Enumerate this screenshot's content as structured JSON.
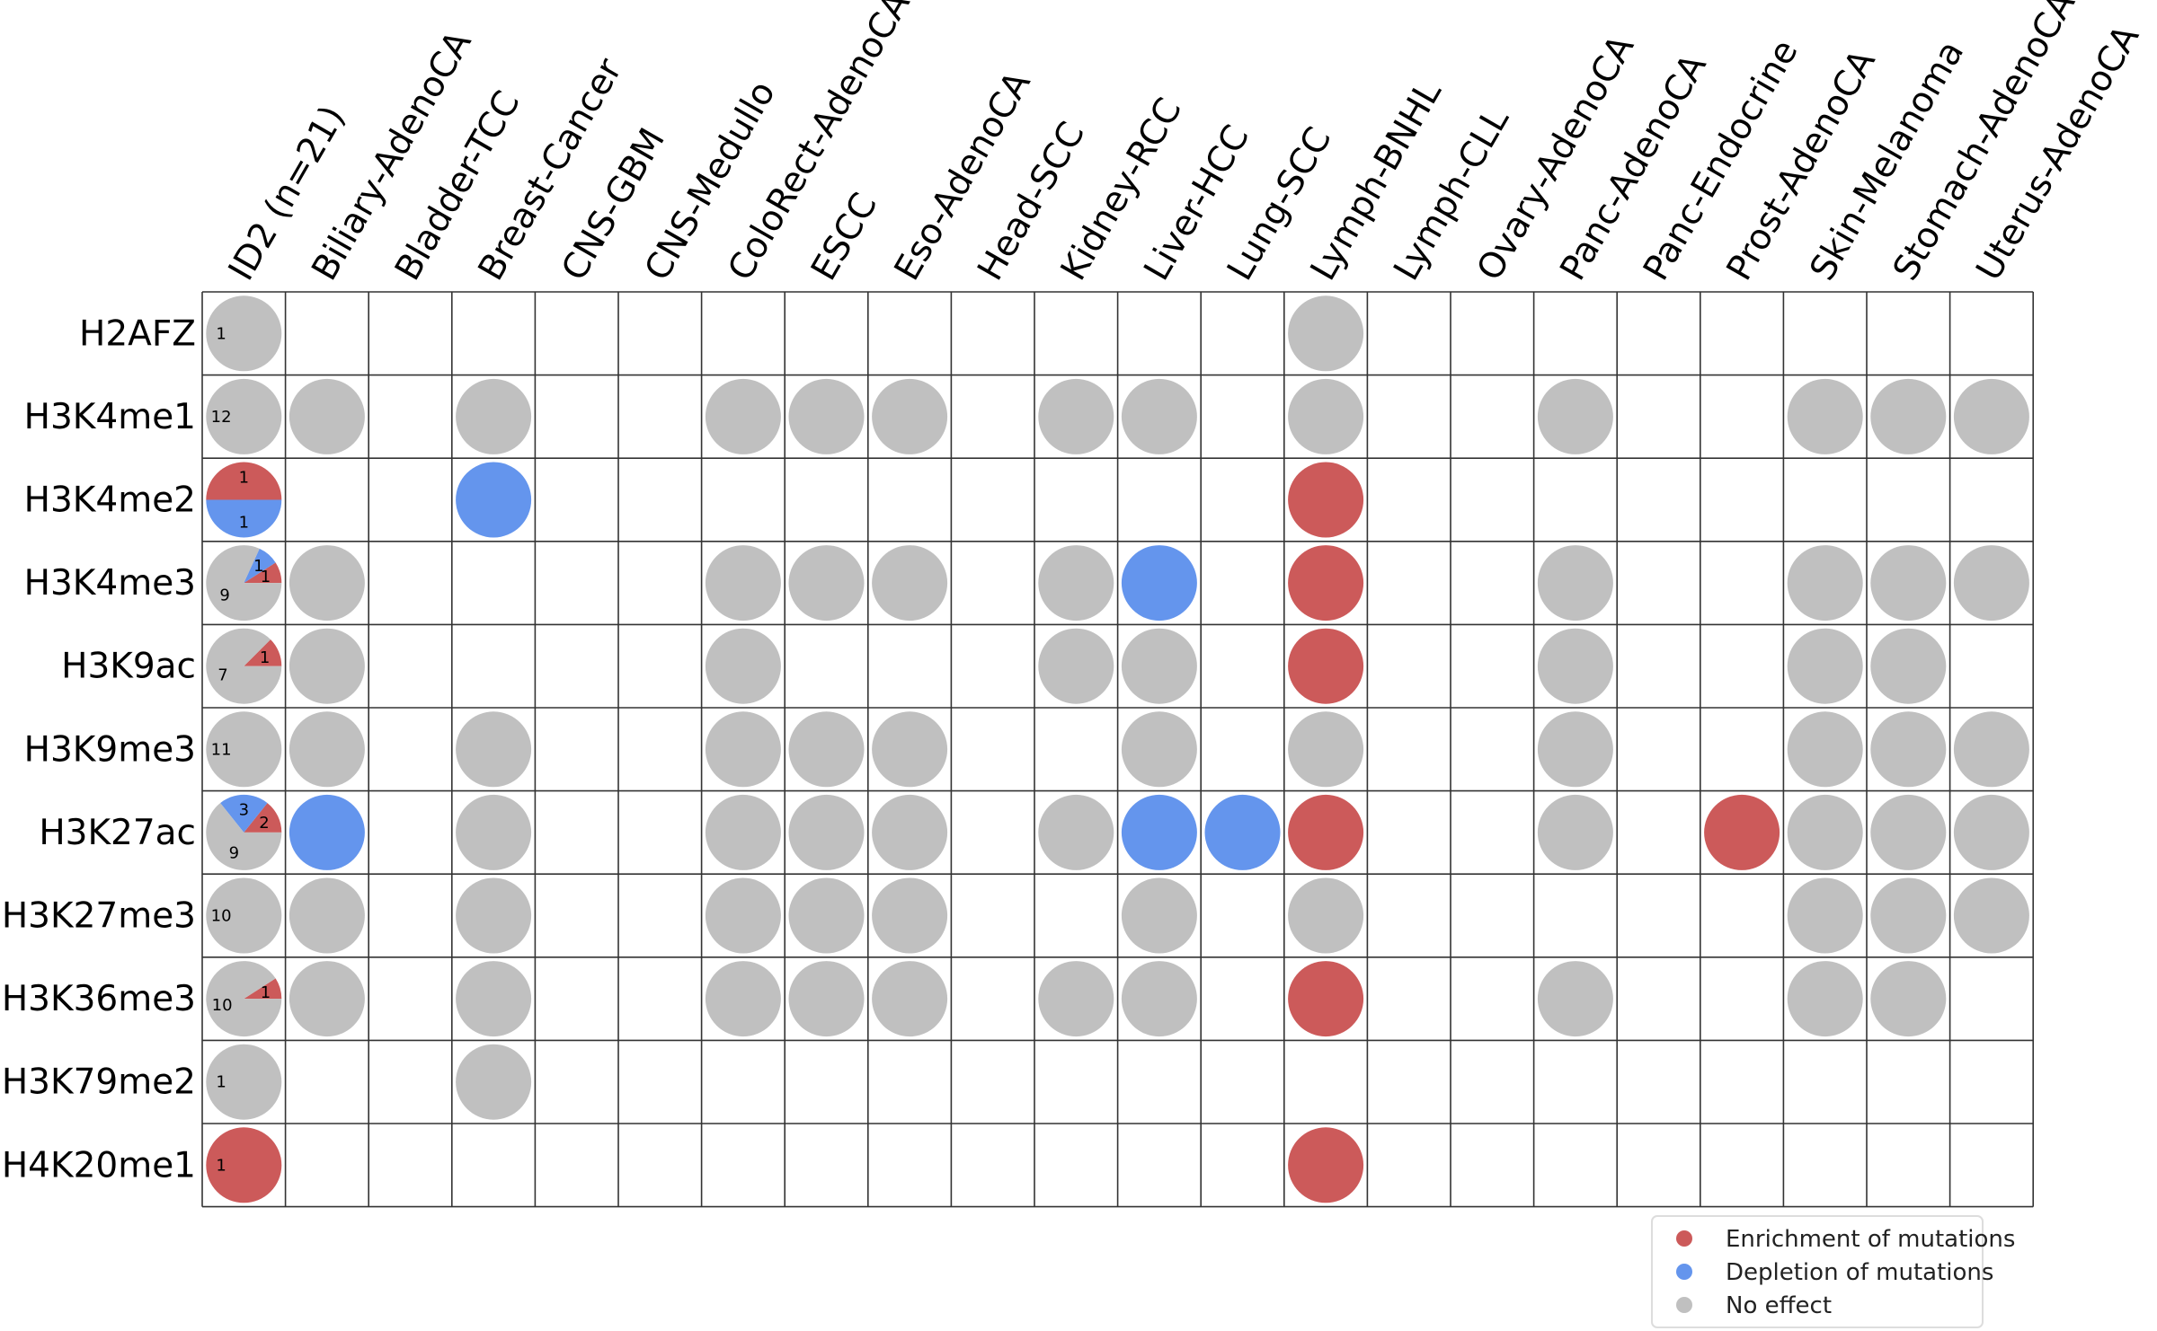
{
  "chart_data": {
    "type": "dot-matrix",
    "rows": [
      "H2AFZ",
      "H3K4me1",
      "H3K4me2",
      "H3K4me3",
      "H3K9ac",
      "H3K9me3",
      "H3K27ac",
      "H3K27me3",
      "H3K36me3",
      "H3K79me2",
      "H4K20me1"
    ],
    "columns": [
      "ID2 (n=21)",
      "Biliary-AdenoCA",
      "Bladder-TCC",
      "Breast-Cancer",
      "CNS-GBM",
      "CNS-Medullo",
      "ColoRect-AdenoCA",
      "ESCC",
      "Eso-AdenoCA",
      "Head-SCC",
      "Kidney-RCC",
      "Liver-HCC",
      "Lung-SCC",
      "Lymph-BNHL",
      "Lymph-CLL",
      "Ovary-AdenoCA",
      "Panc-AdenoCA",
      "Panc-Endocrine",
      "Prost-AdenoCA",
      "Skin-Melanoma",
      "Stomach-AdenoCA",
      "Uterus-AdenoCA"
    ],
    "summary_pies": [
      {
        "row": "H2AFZ",
        "enrichment": 0,
        "depletion": 0,
        "no_effect": 1
      },
      {
        "row": "H3K4me1",
        "enrichment": 0,
        "depletion": 0,
        "no_effect": 12
      },
      {
        "row": "H3K4me2",
        "enrichment": 1,
        "depletion": 1,
        "no_effect": 0
      },
      {
        "row": "H3K4me3",
        "enrichment": 1,
        "depletion": 1,
        "no_effect": 9
      },
      {
        "row": "H3K9ac",
        "enrichment": 1,
        "depletion": 0,
        "no_effect": 7
      },
      {
        "row": "H3K9me3",
        "enrichment": 0,
        "depletion": 0,
        "no_effect": 11
      },
      {
        "row": "H3K27ac",
        "enrichment": 2,
        "depletion": 3,
        "no_effect": 9
      },
      {
        "row": "H3K27me3",
        "enrichment": 0,
        "depletion": 0,
        "no_effect": 10
      },
      {
        "row": "H3K36me3",
        "enrichment": 1,
        "depletion": 0,
        "no_effect": 10
      },
      {
        "row": "H3K79me2",
        "enrichment": 0,
        "depletion": 0,
        "no_effect": 1
      },
      {
        "row": "H4K20me1",
        "enrichment": 1,
        "depletion": 0,
        "no_effect": 0
      }
    ],
    "cells": [
      {
        "row": "H2AFZ",
        "column": "Lymph-BNHL",
        "effect": "none"
      },
      {
        "row": "H3K4me1",
        "column": "Biliary-AdenoCA",
        "effect": "none"
      },
      {
        "row": "H3K4me1",
        "column": "Breast-Cancer",
        "effect": "none"
      },
      {
        "row": "H3K4me1",
        "column": "ColoRect-AdenoCA",
        "effect": "none"
      },
      {
        "row": "H3K4me1",
        "column": "ESCC",
        "effect": "none"
      },
      {
        "row": "H3K4me1",
        "column": "Eso-AdenoCA",
        "effect": "none"
      },
      {
        "row": "H3K4me1",
        "column": "Kidney-RCC",
        "effect": "none"
      },
      {
        "row": "H3K4me1",
        "column": "Liver-HCC",
        "effect": "none"
      },
      {
        "row": "H3K4me1",
        "column": "Lymph-BNHL",
        "effect": "none"
      },
      {
        "row": "H3K4me1",
        "column": "Panc-AdenoCA",
        "effect": "none"
      },
      {
        "row": "H3K4me1",
        "column": "Skin-Melanoma",
        "effect": "none"
      },
      {
        "row": "H3K4me1",
        "column": "Stomach-AdenoCA",
        "effect": "none"
      },
      {
        "row": "H3K4me1",
        "column": "Uterus-AdenoCA",
        "effect": "none"
      },
      {
        "row": "H3K4me2",
        "column": "Breast-Cancer",
        "effect": "depletion"
      },
      {
        "row": "H3K4me2",
        "column": "Lymph-BNHL",
        "effect": "enrichment"
      },
      {
        "row": "H3K4me3",
        "column": "Biliary-AdenoCA",
        "effect": "none"
      },
      {
        "row": "H3K4me3",
        "column": "ColoRect-AdenoCA",
        "effect": "none"
      },
      {
        "row": "H3K4me3",
        "column": "ESCC",
        "effect": "none"
      },
      {
        "row": "H3K4me3",
        "column": "Eso-AdenoCA",
        "effect": "none"
      },
      {
        "row": "H3K4me3",
        "column": "Kidney-RCC",
        "effect": "none"
      },
      {
        "row": "H3K4me3",
        "column": "Liver-HCC",
        "effect": "depletion"
      },
      {
        "row": "H3K4me3",
        "column": "Lymph-BNHL",
        "effect": "enrichment"
      },
      {
        "row": "H3K4me3",
        "column": "Panc-AdenoCA",
        "effect": "none"
      },
      {
        "row": "H3K4me3",
        "column": "Skin-Melanoma",
        "effect": "none"
      },
      {
        "row": "H3K4me3",
        "column": "Stomach-AdenoCA",
        "effect": "none"
      },
      {
        "row": "H3K4me3",
        "column": "Uterus-AdenoCA",
        "effect": "none"
      },
      {
        "row": "H3K9ac",
        "column": "Biliary-AdenoCA",
        "effect": "none"
      },
      {
        "row": "H3K9ac",
        "column": "ColoRect-AdenoCA",
        "effect": "none"
      },
      {
        "row": "H3K9ac",
        "column": "Kidney-RCC",
        "effect": "none"
      },
      {
        "row": "H3K9ac",
        "column": "Liver-HCC",
        "effect": "none"
      },
      {
        "row": "H3K9ac",
        "column": "Lymph-BNHL",
        "effect": "enrichment"
      },
      {
        "row": "H3K9ac",
        "column": "Panc-AdenoCA",
        "effect": "none"
      },
      {
        "row": "H3K9ac",
        "column": "Skin-Melanoma",
        "effect": "none"
      },
      {
        "row": "H3K9ac",
        "column": "Stomach-AdenoCA",
        "effect": "none"
      },
      {
        "row": "H3K9me3",
        "column": "Biliary-AdenoCA",
        "effect": "none"
      },
      {
        "row": "H3K9me3",
        "column": "Breast-Cancer",
        "effect": "none"
      },
      {
        "row": "H3K9me3",
        "column": "ColoRect-AdenoCA",
        "effect": "none"
      },
      {
        "row": "H3K9me3",
        "column": "ESCC",
        "effect": "none"
      },
      {
        "row": "H3K9me3",
        "column": "Eso-AdenoCA",
        "effect": "none"
      },
      {
        "row": "H3K9me3",
        "column": "Liver-HCC",
        "effect": "none"
      },
      {
        "row": "H3K9me3",
        "column": "Lymph-BNHL",
        "effect": "none"
      },
      {
        "row": "H3K9me3",
        "column": "Panc-AdenoCA",
        "effect": "none"
      },
      {
        "row": "H3K9me3",
        "column": "Skin-Melanoma",
        "effect": "none"
      },
      {
        "row": "H3K9me3",
        "column": "Stomach-AdenoCA",
        "effect": "none"
      },
      {
        "row": "H3K9me3",
        "column": "Uterus-AdenoCA",
        "effect": "none"
      },
      {
        "row": "H3K27ac",
        "column": "Biliary-AdenoCA",
        "effect": "depletion"
      },
      {
        "row": "H3K27ac",
        "column": "Breast-Cancer",
        "effect": "none"
      },
      {
        "row": "H3K27ac",
        "column": "ColoRect-AdenoCA",
        "effect": "none"
      },
      {
        "row": "H3K27ac",
        "column": "ESCC",
        "effect": "none"
      },
      {
        "row": "H3K27ac",
        "column": "Eso-AdenoCA",
        "effect": "none"
      },
      {
        "row": "H3K27ac",
        "column": "Kidney-RCC",
        "effect": "none"
      },
      {
        "row": "H3K27ac",
        "column": "Liver-HCC",
        "effect": "depletion"
      },
      {
        "row": "H3K27ac",
        "column": "Lung-SCC",
        "effect": "depletion"
      },
      {
        "row": "H3K27ac",
        "column": "Lymph-BNHL",
        "effect": "enrichment"
      },
      {
        "row": "H3K27ac",
        "column": "Panc-AdenoCA",
        "effect": "none"
      },
      {
        "row": "H3K27ac",
        "column": "Prost-AdenoCA",
        "effect": "enrichment"
      },
      {
        "row": "H3K27ac",
        "column": "Skin-Melanoma",
        "effect": "none"
      },
      {
        "row": "H3K27ac",
        "column": "Stomach-AdenoCA",
        "effect": "none"
      },
      {
        "row": "H3K27ac",
        "column": "Uterus-AdenoCA",
        "effect": "none"
      },
      {
        "row": "H3K27me3",
        "column": "Biliary-AdenoCA",
        "effect": "none"
      },
      {
        "row": "H3K27me3",
        "column": "Breast-Cancer",
        "effect": "none"
      },
      {
        "row": "H3K27me3",
        "column": "ColoRect-AdenoCA",
        "effect": "none"
      },
      {
        "row": "H3K27me3",
        "column": "ESCC",
        "effect": "none"
      },
      {
        "row": "H3K27me3",
        "column": "Eso-AdenoCA",
        "effect": "none"
      },
      {
        "row": "H3K27me3",
        "column": "Liver-HCC",
        "effect": "none"
      },
      {
        "row": "H3K27me3",
        "column": "Lymph-BNHL",
        "effect": "none"
      },
      {
        "row": "H3K27me3",
        "column": "Skin-Melanoma",
        "effect": "none"
      },
      {
        "row": "H3K27me3",
        "column": "Stomach-AdenoCA",
        "effect": "none"
      },
      {
        "row": "H3K27me3",
        "column": "Uterus-AdenoCA",
        "effect": "none"
      },
      {
        "row": "H3K36me3",
        "column": "Biliary-AdenoCA",
        "effect": "none"
      },
      {
        "row": "H3K36me3",
        "column": "Breast-Cancer",
        "effect": "none"
      },
      {
        "row": "H3K36me3",
        "column": "ColoRect-AdenoCA",
        "effect": "none"
      },
      {
        "row": "H3K36me3",
        "column": "ESCC",
        "effect": "none"
      },
      {
        "row": "H3K36me3",
        "column": "Eso-AdenoCA",
        "effect": "none"
      },
      {
        "row": "H3K36me3",
        "column": "Kidney-RCC",
        "effect": "none"
      },
      {
        "row": "H3K36me3",
        "column": "Liver-HCC",
        "effect": "none"
      },
      {
        "row": "H3K36me3",
        "column": "Lymph-BNHL",
        "effect": "enrichment"
      },
      {
        "row": "H3K36me3",
        "column": "Panc-AdenoCA",
        "effect": "none"
      },
      {
        "row": "H3K36me3",
        "column": "Skin-Melanoma",
        "effect": "none"
      },
      {
        "row": "H3K36me3",
        "column": "Stomach-AdenoCA",
        "effect": "none"
      },
      {
        "row": "H3K79me2",
        "column": "Breast-Cancer",
        "effect": "none"
      },
      {
        "row": "H4K20me1",
        "column": "Lymph-BNHL",
        "effect": "enrichment"
      }
    ],
    "legend": {
      "position": "bottom-right",
      "items": [
        {
          "key": "enrichment",
          "label": "Enrichment of mutations",
          "color": "#cc5a5a"
        },
        {
          "key": "depletion",
          "label": "Depletion of mutations",
          "color": "#6495ed"
        },
        {
          "key": "none",
          "label": "No effect",
          "color": "#c0c0c0"
        }
      ]
    },
    "grid": true
  },
  "colors": {
    "enrichment": "#cc5a5a",
    "depletion": "#6495ed",
    "none": "#c0c0c0",
    "gridline": "#333333"
  }
}
